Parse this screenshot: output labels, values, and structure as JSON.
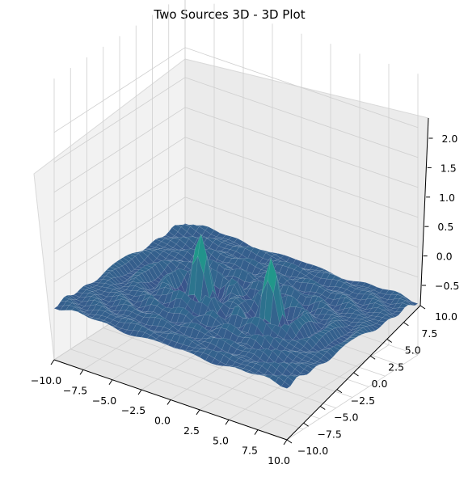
{
  "chart_data": {
    "type": "surface",
    "title": "Two Sources 3D - 3D Plot",
    "colormap": "viridis",
    "x_ticks": [
      "−10.0",
      "−7.5",
      "−5.0",
      "−2.5",
      "0.0",
      "2.5",
      "5.0",
      "7.5",
      "10.0"
    ],
    "y_ticks": [
      "−10.0",
      "−7.5",
      "−5.0",
      "−2.5",
      "0.0",
      "2.5",
      "5.0",
      "7.5",
      "10.0"
    ],
    "z_ticks": [
      "−0.5",
      "0.0",
      "0.5",
      "1.0",
      "1.5",
      "2.0"
    ],
    "xlim": [
      -10,
      10
    ],
    "ylim": [
      -10,
      10
    ],
    "zlim": [
      -0.9,
      2.2
    ],
    "peaks": [
      {
        "x": -3,
        "y": 0,
        "z": 2.0
      },
      {
        "x": 3,
        "y": 0,
        "z": 2.0
      }
    ],
    "grid": true,
    "pane_color": "#f2f2f2"
  }
}
